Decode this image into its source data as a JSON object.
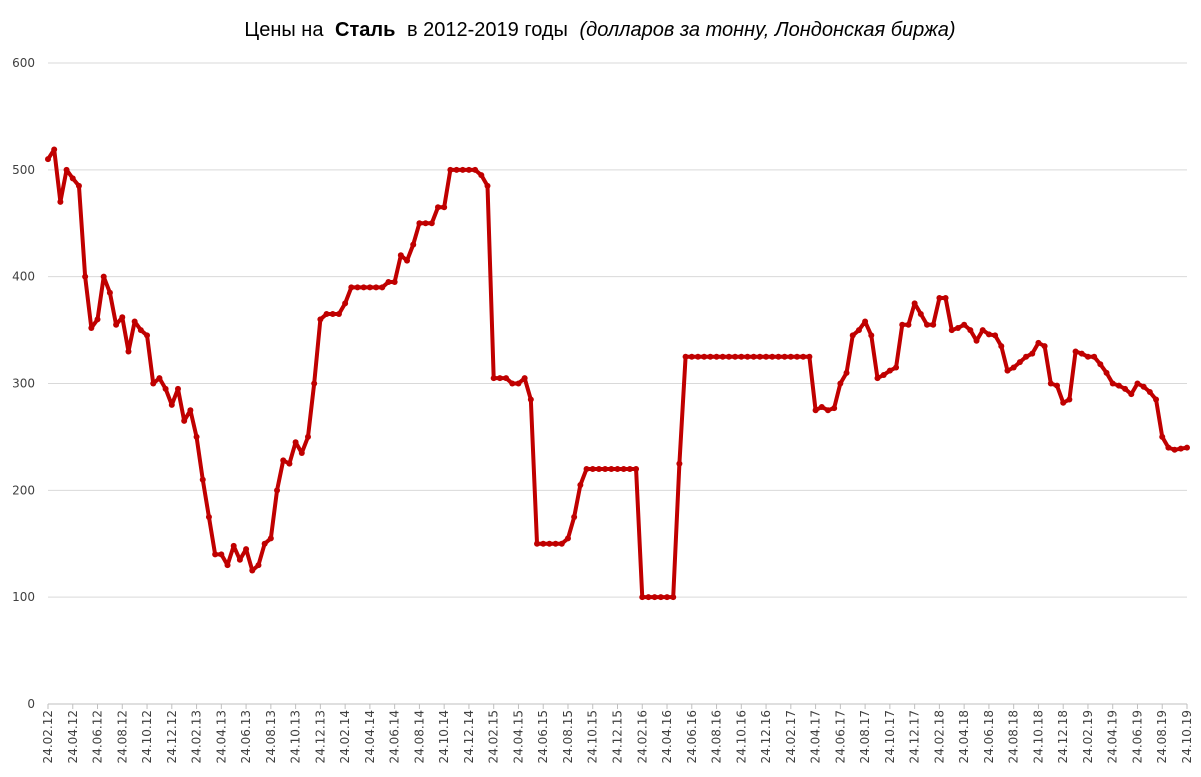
{
  "chart_data": {
    "type": "line",
    "title_parts": [
      "Цены на",
      "Сталь",
      "в 2012-2019 годы",
      "(долларов за тонну, Лондонская биржа)"
    ],
    "categories": [
      "24.02.12",
      null,
      null,
      null,
      "24.04.12",
      null,
      null,
      null,
      "24.06.12",
      null,
      null,
      null,
      "24.08.12",
      null,
      null,
      null,
      "24.10.12",
      null,
      null,
      null,
      "24.12.12",
      null,
      null,
      null,
      "24.02.13",
      null,
      null,
      null,
      "24.04.13",
      null,
      null,
      null,
      "24.06.13",
      null,
      null,
      null,
      "24.08.13",
      null,
      null,
      null,
      "24.10.13",
      null,
      null,
      null,
      "24.12.13",
      null,
      null,
      null,
      "24.02.14",
      null,
      null,
      null,
      "24.04.14",
      null,
      null,
      null,
      "24.06.14",
      null,
      null,
      null,
      "24.08.14",
      null,
      null,
      null,
      "24.10.14",
      null,
      null,
      null,
      "24.12.14",
      null,
      null,
      null,
      "24.02.15",
      null,
      null,
      null,
      "24.04.15",
      null,
      null,
      null,
      "24.06.15",
      null,
      null,
      null,
      "24.08.15",
      null,
      null,
      null,
      "24.10.15",
      null,
      null,
      null,
      "24.12.15",
      null,
      null,
      null,
      "24.02.16",
      null,
      null,
      null,
      "24.04.16",
      null,
      null,
      null,
      "24.06.16",
      null,
      null,
      null,
      "24.08.16",
      null,
      null,
      null,
      "24.10.16",
      null,
      null,
      null,
      "24.12.16",
      null,
      null,
      null,
      "24.02.17",
      null,
      null,
      null,
      "24.04.17",
      null,
      null,
      null,
      "24.06.17",
      null,
      null,
      null,
      "24.08.17",
      null,
      null,
      null,
      "24.10.17",
      null,
      null,
      null,
      "24.12.17",
      null,
      null,
      null,
      "24.02.18",
      null,
      null,
      null,
      "24.04.18",
      null,
      null,
      null,
      "24.06.18",
      null,
      null,
      null,
      "24.08.18",
      null,
      null,
      null,
      "24.10.18",
      null,
      null,
      null,
      "24.12.18",
      null,
      null,
      null,
      "24.02.19",
      null,
      null,
      null,
      "24.04.19",
      null,
      null,
      null,
      "24.06.19",
      null,
      null,
      null,
      "24.08.19",
      null,
      null,
      null,
      "24.10.19"
    ],
    "values": [
      510,
      519,
      470,
      500,
      492,
      485,
      400,
      352,
      360,
      400,
      385,
      355,
      362,
      330,
      358,
      350,
      345,
      300,
      305,
      295,
      280,
      295,
      265,
      275,
      250,
      210,
      175,
      140,
      140,
      130,
      148,
      135,
      145,
      125,
      130,
      150,
      155,
      200,
      228,
      225,
      245,
      235,
      250,
      300,
      360,
      365,
      365,
      365,
      375,
      390,
      390,
      390,
      390,
      390,
      390,
      395,
      395,
      420,
      415,
      430,
      450,
      450,
      450,
      465,
      465,
      500,
      500,
      500,
      500,
      500,
      495,
      485,
      305,
      305,
      305,
      300,
      300,
      305,
      285,
      150,
      150,
      150,
      150,
      150,
      155,
      175,
      205,
      220,
      220,
      220,
      220,
      220,
      220,
      220,
      220,
      220,
      100,
      100,
      100,
      100,
      100,
      100,
      225,
      325,
      325,
      325,
      325,
      325,
      325,
      325,
      325,
      325,
      325,
      325,
      325,
      325,
      325,
      325,
      325,
      325,
      325,
      325,
      325,
      325,
      275,
      278,
      275,
      277,
      300,
      310,
      345,
      350,
      358,
      345,
      305,
      308,
      312,
      315,
      355,
      355,
      375,
      365,
      355,
      355,
      380,
      380,
      350,
      352,
      355,
      350,
      340,
      350,
      346,
      345,
      335,
      312,
      315,
      320,
      325,
      328,
      338,
      335,
      300,
      298,
      282,
      285,
      330,
      328,
      325,
      325,
      318,
      310,
      300,
      298,
      295,
      290,
      300,
      297,
      292,
      285,
      250,
      240,
      238,
      239,
      240
    ],
    "color": "#c00000",
    "ylim": [
      0,
      600
    ],
    "yticks": [
      0,
      100,
      200,
      300,
      400,
      500,
      600
    ],
    "grid": true
  }
}
